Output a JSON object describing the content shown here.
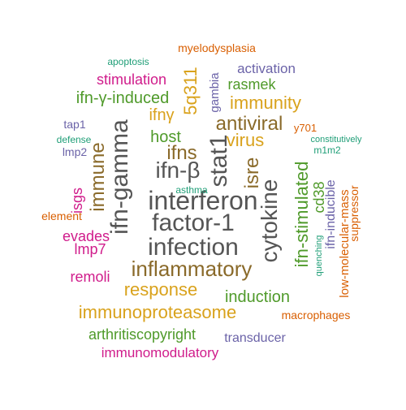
{
  "word_cloud": {
    "palette": {
      "gray": "#555555",
      "gold": "#d9a21c",
      "brown": "#8a6a2a",
      "orange": "#d95f02",
      "pink": "#d01c8b",
      "green": "#4f9a2a",
      "purple": "#6b63a8",
      "teal": "#1f9e77"
    },
    "words": [
      {
        "id": "interferon",
        "text": "interferon",
        "color": "gray"
      },
      {
        "id": "factor-1",
        "text": "factor-1",
        "color": "gray"
      },
      {
        "id": "infection",
        "text": "infection",
        "color": "gray"
      },
      {
        "id": "ifn-beta",
        "text": "ifn-β",
        "color": "gray"
      },
      {
        "id": "ifn-gamma",
        "text": "ifn-gamma",
        "color": "gray"
      },
      {
        "id": "stat1",
        "text": "stat1",
        "color": "gray"
      },
      {
        "id": "cytokine",
        "text": "cytokine",
        "color": "gray"
      },
      {
        "id": "inflammatory",
        "text": "inflammatory",
        "color": "brown"
      },
      {
        "id": "antiviral",
        "text": "antiviral",
        "color": "brown"
      },
      {
        "id": "immune",
        "text": "immune",
        "color": "brown"
      },
      {
        "id": "ifns",
        "text": "ifns",
        "color": "brown"
      },
      {
        "id": "isre",
        "text": "isre",
        "color": "brown"
      },
      {
        "id": "immunoproteasome",
        "text": "immunoproteasome",
        "color": "gold"
      },
      {
        "id": "response",
        "text": "response",
        "color": "gold"
      },
      {
        "id": "immunity",
        "text": "immunity",
        "color": "gold"
      },
      {
        "id": "virus",
        "text": "virus",
        "color": "gold"
      },
      {
        "id": "5q311",
        "text": "5q311",
        "color": "gold"
      },
      {
        "id": "ifngamma-short",
        "text": "ifnγ",
        "color": "gold"
      },
      {
        "id": "ifn-stimulated",
        "text": "ifn-stimulated",
        "color": "green"
      },
      {
        "id": "induction",
        "text": "induction",
        "color": "green"
      },
      {
        "id": "arthritiscopyright",
        "text": "arthritiscopyright",
        "color": "green"
      },
      {
        "id": "ifn-gamma-induced",
        "text": "ifn-γ-induced",
        "color": "green"
      },
      {
        "id": "host",
        "text": "host",
        "color": "green"
      },
      {
        "id": "rasmek",
        "text": "rasmek",
        "color": "green"
      },
      {
        "id": "cd38",
        "text": "cd38",
        "color": "green"
      },
      {
        "id": "stimulation",
        "text": "stimulation",
        "color": "pink"
      },
      {
        "id": "immunomodulatory",
        "text": "immunomodulatory",
        "color": "pink"
      },
      {
        "id": "evades",
        "text": "evades",
        "color": "pink"
      },
      {
        "id": "isgs",
        "text": "isgs",
        "color": "pink"
      },
      {
        "id": "remoli",
        "text": "remoli",
        "color": "pink"
      },
      {
        "id": "lmp7",
        "text": "lmp7",
        "color": "pink"
      },
      {
        "id": "activation",
        "text": "activation",
        "color": "purple"
      },
      {
        "id": "transducer",
        "text": "transducer",
        "color": "purple"
      },
      {
        "id": "gambia",
        "text": "gambia",
        "color": "purple"
      },
      {
        "id": "tap1",
        "text": "tap1",
        "color": "purple"
      },
      {
        "id": "lmp2",
        "text": "lmp2",
        "color": "purple"
      },
      {
        "id": "ifn-inducible",
        "text": "ifn-inducible",
        "color": "purple"
      },
      {
        "id": "myelodysplasia",
        "text": "myelodysplasia",
        "color": "orange"
      },
      {
        "id": "macrophages",
        "text": "macrophages",
        "color": "orange"
      },
      {
        "id": "low-molecular-mass",
        "text": "low-molecular-mass",
        "color": "orange"
      },
      {
        "id": "suppressor",
        "text": "suppressor",
        "color": "orange"
      },
      {
        "id": "element",
        "text": "element",
        "color": "orange"
      },
      {
        "id": "y701",
        "text": "y701",
        "color": "orange"
      },
      {
        "id": "apoptosis",
        "text": "apoptosis",
        "color": "teal"
      },
      {
        "id": "defense",
        "text": "defense",
        "color": "teal"
      },
      {
        "id": "asthma",
        "text": "asthma",
        "color": "teal"
      },
      {
        "id": "constitutively",
        "text": "constitutively",
        "color": "teal"
      },
      {
        "id": "m1m2",
        "text": "m1m2",
        "color": "teal"
      },
      {
        "id": "quenching",
        "text": "quenching",
        "color": "teal"
      }
    ]
  }
}
